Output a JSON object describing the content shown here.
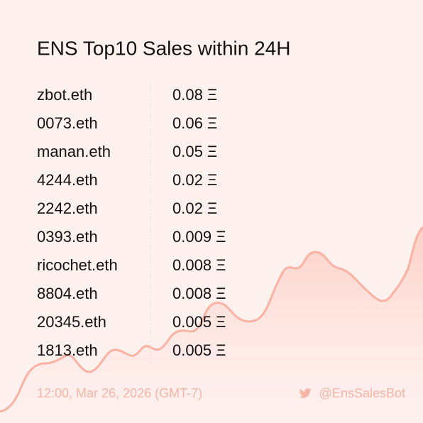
{
  "header": {
    "title": "ENS Top10 Sales within 24H"
  },
  "sales": [
    {
      "name": "zbot.eth",
      "price": "0.08 Ξ"
    },
    {
      "name": "0073.eth",
      "price": "0.06 Ξ"
    },
    {
      "name": "manan.eth",
      "price": "0.05 Ξ"
    },
    {
      "name": "4244.eth",
      "price": "0.02 Ξ"
    },
    {
      "name": "2242.eth",
      "price": "0.02 Ξ"
    },
    {
      "name": "0393.eth",
      "price": "0.009 Ξ"
    },
    {
      "name": "ricochet.eth",
      "price": "0.008 Ξ"
    },
    {
      "name": "8804.eth",
      "price": "0.008 Ξ"
    },
    {
      "name": "20345.eth",
      "price": "0.005 Ξ"
    },
    {
      "name": "1813.eth",
      "price": "0.005 Ξ"
    }
  ],
  "footer": {
    "timestamp": "12:00, Mar 26, 2026 (GMT-7)",
    "handle": "@EnsSalesBot"
  }
}
